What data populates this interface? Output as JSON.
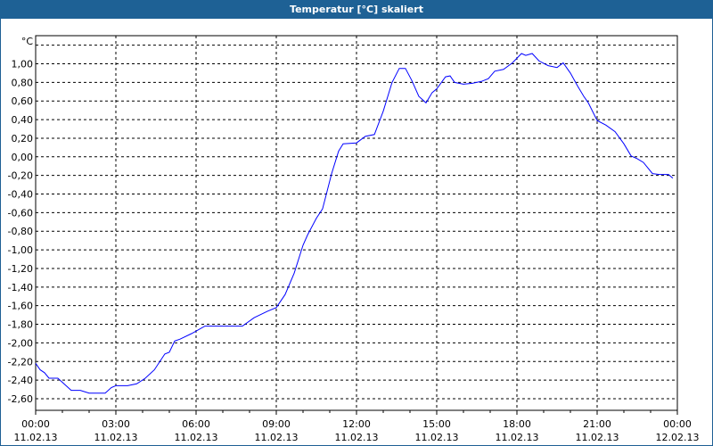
{
  "window": {
    "title": "Temperatur [°C] skaliert"
  },
  "chart_data": {
    "type": "line",
    "title": "Temperatur [°C] skaliert",
    "ylabel": "°C",
    "xlabel": "",
    "xlim_hours": [
      0,
      24
    ],
    "ylim": [
      -2.72,
      1.3
    ],
    "grid": true,
    "yticks": [
      1.0,
      0.8,
      0.6,
      0.4,
      0.2,
      0.0,
      -0.2,
      -0.4,
      -0.6,
      -0.8,
      -1.0,
      -1.2,
      -1.4,
      -1.6,
      -1.8,
      -2.0,
      -2.2,
      -2.4,
      -2.6
    ],
    "ytick_labels": [
      "1,00",
      "0,80",
      "0,60",
      "0,40",
      "0,20",
      "0,00",
      "-0,20",
      "-0,40",
      "-0,60",
      "-0,80",
      "-1,00",
      "-1,20",
      "-1,40",
      "-1,60",
      "-1,80",
      "-2,00",
      "-2,20",
      "-2,40",
      "-2,60"
    ],
    "xticks": [
      {
        "time": "00:00",
        "date": "11.02.13"
      },
      {
        "time": "03:00",
        "date": "11.02.13"
      },
      {
        "time": "06:00",
        "date": "11.02.13"
      },
      {
        "time": "09:00",
        "date": "11.02.13"
      },
      {
        "time": "12:00",
        "date": "11.02.13"
      },
      {
        "time": "15:00",
        "date": "11.02.13"
      },
      {
        "time": "18:00",
        "date": "11.02.13"
      },
      {
        "time": "21:00",
        "date": "11.02.13"
      },
      {
        "time": "00:00",
        "date": "12.02.13"
      }
    ],
    "series": [
      {
        "color": "#0000ff",
        "x_hours": [
          0,
          0.17,
          0.33,
          0.5,
          0.83,
          1.06,
          1.33,
          1.67,
          2.0,
          2.6,
          2.83,
          3.0,
          3.44,
          3.78,
          4.1,
          4.44,
          4.83,
          5.0,
          5.2,
          5.4,
          5.83,
          6.33,
          7.73,
          8.17,
          8.67,
          9.0,
          9.33,
          9.67,
          10.0,
          10.17,
          10.5,
          10.73,
          11.07,
          11.33,
          11.5,
          12.0,
          12.33,
          12.67,
          13.0,
          13.33,
          13.6,
          13.83,
          14.07,
          14.33,
          14.6,
          14.83,
          15.0,
          15.33,
          15.5,
          15.67,
          16.0,
          16.33,
          16.67,
          16.93,
          17.17,
          17.5,
          17.83,
          18.17,
          18.33,
          18.57,
          18.83,
          19.17,
          19.5,
          19.73,
          20.0,
          20.27,
          20.5,
          20.67,
          21.0,
          21.33,
          21.67,
          22.0,
          22.27,
          22.5,
          22.73,
          23.07,
          23.33,
          23.67,
          23.83
        ],
        "values": [
          -2.22,
          -2.29,
          -2.32,
          -2.38,
          -2.38,
          -2.44,
          -2.51,
          -2.51,
          -2.54,
          -2.54,
          -2.48,
          -2.46,
          -2.46,
          -2.44,
          -2.38,
          -2.29,
          -2.12,
          -2.1,
          -1.98,
          -1.96,
          -1.9,
          -1.82,
          -1.82,
          -1.73,
          -1.66,
          -1.62,
          -1.48,
          -1.25,
          -0.95,
          -0.84,
          -0.66,
          -0.56,
          -0.18,
          0.06,
          0.14,
          0.15,
          0.22,
          0.24,
          0.49,
          0.8,
          0.95,
          0.95,
          0.82,
          0.65,
          0.58,
          0.69,
          0.73,
          0.86,
          0.87,
          0.8,
          0.78,
          0.79,
          0.81,
          0.84,
          0.92,
          0.94,
          1.01,
          1.11,
          1.09,
          1.11,
          1.03,
          0.98,
          0.96,
          1.01,
          0.9,
          0.76,
          0.65,
          0.58,
          0.39,
          0.34,
          0.27,
          0.14,
          0.01,
          -0.02,
          -0.06,
          -0.18,
          -0.19,
          -0.19,
          -0.23
        ]
      }
    ]
  }
}
